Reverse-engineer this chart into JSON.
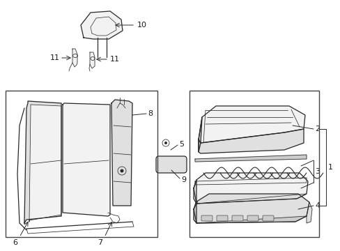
{
  "bg_color": "#ffffff",
  "line_color": "#2a2a2a",
  "label_color": "#1a1a1a",
  "fill_light": "#f2f2f2",
  "fill_mid": "#e0e0e0",
  "fill_dark": "#cccccc",
  "box_color": "#444444",
  "lw_main": 0.9,
  "lw_thin": 0.55,
  "fs": 8.0
}
